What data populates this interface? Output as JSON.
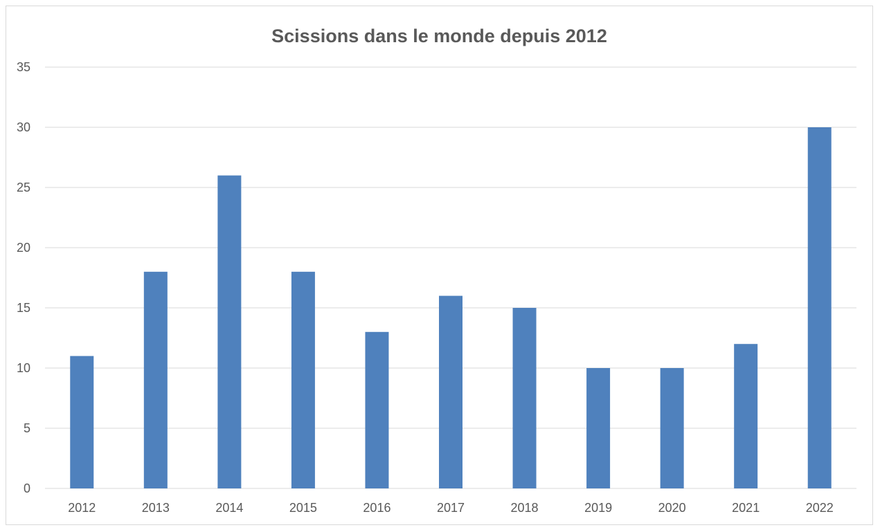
{
  "chart_data": {
    "type": "bar",
    "title": "Scissions dans le monde depuis 2012",
    "xlabel": "",
    "ylabel": "",
    "categories": [
      "2012",
      "2013",
      "2014",
      "2015",
      "2016",
      "2017",
      "2018",
      "2019",
      "2020",
      "2021",
      "2022"
    ],
    "values": [
      11,
      18,
      26,
      18,
      13,
      16,
      15,
      10,
      10,
      12,
      30
    ],
    "ylim": [
      0,
      35
    ],
    "yticks": [
      "0",
      "5",
      "10",
      "15",
      "20",
      "25",
      "30",
      "35"
    ],
    "grid": true,
    "legend": "none",
    "bar_color": "#4f81bd",
    "grid_color": "#d9d9d9",
    "text_color": "#595959"
  }
}
